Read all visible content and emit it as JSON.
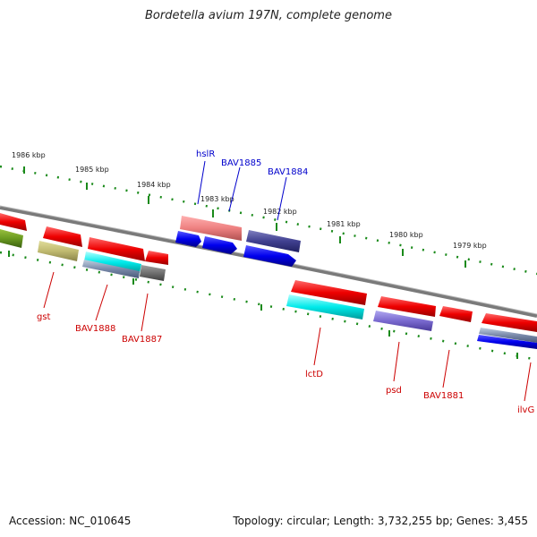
{
  "title": "Bordetella avium 197N, complete genome",
  "footer": {
    "accession": "Accession: NC_010645",
    "summary": "Topology: circular; Length: 3,732,255 bp; Genes: 3,455"
  },
  "kbp_labels": [
    "1986 kbp",
    "1985 kbp",
    "1984 kbp",
    "1983 kbp",
    "1982 kbp",
    "1981 kbp",
    "1980 kbp",
    "1979 kbp"
  ],
  "gene_labels": {
    "top": [
      "hslR",
      "BAV1885",
      "BAV1884"
    ],
    "bottom": [
      "gst",
      "BAV1888",
      "BAV1887",
      "lctD",
      "psd",
      "BAV1881",
      "ilvG"
    ]
  },
  "colors": {
    "backbone": "#808080",
    "tick": "#1a8a1a",
    "red_label": "#cc0000",
    "blue_label": "#0000cc"
  }
}
